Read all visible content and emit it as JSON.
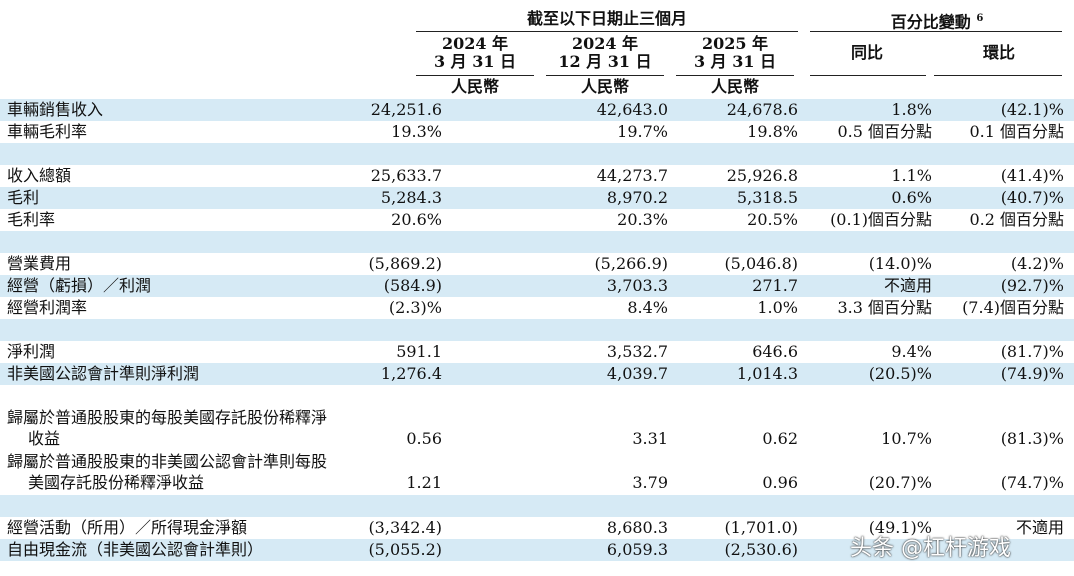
{
  "header": {
    "group_left": "截至以下日期止三個月",
    "group_right": "百分比變動",
    "group_right_sup": "6",
    "col1_line1": "2024 年",
    "col1_line2": "3 月 31 日",
    "col1_currency": "人民幣",
    "col2_line1": "2024 年",
    "col2_line2": "12 月 31 日",
    "col2_currency": "人民幣",
    "col3_line1": "2025 年",
    "col3_line2": "3 月 31 日",
    "col3_currency": "人民幣",
    "col4": "同比",
    "col5": "環比"
  },
  "rows": [
    {
      "label": "車輛銷售收入",
      "label2": "",
      "v1": "24,251.6",
      "v2": "42,643.0",
      "v3": "24,678.6",
      "v4": "1.8%",
      "v5": "(42.1)%"
    },
    {
      "label": "車輛毛利率",
      "label2": "",
      "v1": "19.3%",
      "v2": "19.7%",
      "v3": "19.8%",
      "v4": "0.5 個百分點",
      "v5": "0.1 個百分點"
    },
    {
      "label": "",
      "label2": "",
      "v1": "",
      "v2": "",
      "v3": "",
      "v4": "",
      "v5": ""
    },
    {
      "label": "收入總額",
      "label2": "",
      "v1": "25,633.7",
      "v2": "44,273.7",
      "v3": "25,926.8",
      "v4": "1.1%",
      "v5": "(41.4)%"
    },
    {
      "label": "毛利",
      "label2": "",
      "v1": "5,284.3",
      "v2": "8,970.2",
      "v3": "5,318.5",
      "v4": "0.6%",
      "v5": "(40.7)%"
    },
    {
      "label": "毛利率",
      "label2": "",
      "v1": "20.6%",
      "v2": "20.3%",
      "v3": "20.5%",
      "v4": "(0.1)個百分點",
      "v5": "0.2 個百分點"
    },
    {
      "label": "",
      "label2": "",
      "v1": "",
      "v2": "",
      "v3": "",
      "v4": "",
      "v5": ""
    },
    {
      "label": "營業費用",
      "label2": "",
      "v1": "(5,869.2)",
      "v2": "(5,266.9)",
      "v3": "(5,046.8)",
      "v4": "(14.0)%",
      "v5": "(4.2)%"
    },
    {
      "label": "經營（虧損）／利潤",
      "label2": "",
      "v1": "(584.9)",
      "v2": "3,703.3",
      "v3": "271.7",
      "v4": "不適用",
      "v5": "(92.7)%"
    },
    {
      "label": "經營利潤率",
      "label2": "",
      "v1": "(2.3)%",
      "v2": "8.4%",
      "v3": "1.0%",
      "v4": "3.3 個百分點",
      "v5": "(7.4)個百分點"
    },
    {
      "label": "",
      "label2": "",
      "v1": "",
      "v2": "",
      "v3": "",
      "v4": "",
      "v5": ""
    },
    {
      "label": "淨利潤",
      "label2": "",
      "v1": "591.1",
      "v2": "3,532.7",
      "v3": "646.6",
      "v4": "9.4%",
      "v5": "(81.7)%"
    },
    {
      "label": "非美國公認會計準則淨利潤",
      "label2": "",
      "v1": "1,276.4",
      "v2": "4,039.7",
      "v3": "1,014.3",
      "v4": "(20.5)%",
      "v5": "(74.9)%"
    },
    {
      "label": "",
      "label2": "",
      "v1": "",
      "v2": "",
      "v3": "",
      "v4": "",
      "v5": ""
    },
    {
      "label": "歸屬於普通股股東的每股美國存託股份稀釋淨",
      "label2": "收益",
      "v1": "0.56",
      "v2": "3.31",
      "v3": "0.62",
      "v4": "10.7%",
      "v5": "(81.3)%"
    },
    {
      "label": "歸屬於普通股股東的非美國公認會計準則每股",
      "label2": "美國存託股份稀釋淨收益",
      "v1": "1.21",
      "v2": "3.79",
      "v3": "0.96",
      "v4": "(20.7)%",
      "v5": "(74.7)%"
    },
    {
      "label": "",
      "label2": "",
      "v1": "",
      "v2": "",
      "v3": "",
      "v4": "",
      "v5": ""
    },
    {
      "label": "經營活動（所用）／所得現金淨額",
      "label2": "",
      "v1": "(3,342.4)",
      "v2": "8,680.3",
      "v3": "(1,701.0)",
      "v4": "(49.1)%",
      "v5": "不適用"
    },
    {
      "label": "自由現金流（非美國公認會計準則）",
      "label2": "",
      "v1": "(5,055.2)",
      "v2": "6,059.3",
      "v3": "(2,530.6)",
      "v4": "",
      "v5": ""
    }
  ],
  "watermark": "头条 @杠杆游戏"
}
